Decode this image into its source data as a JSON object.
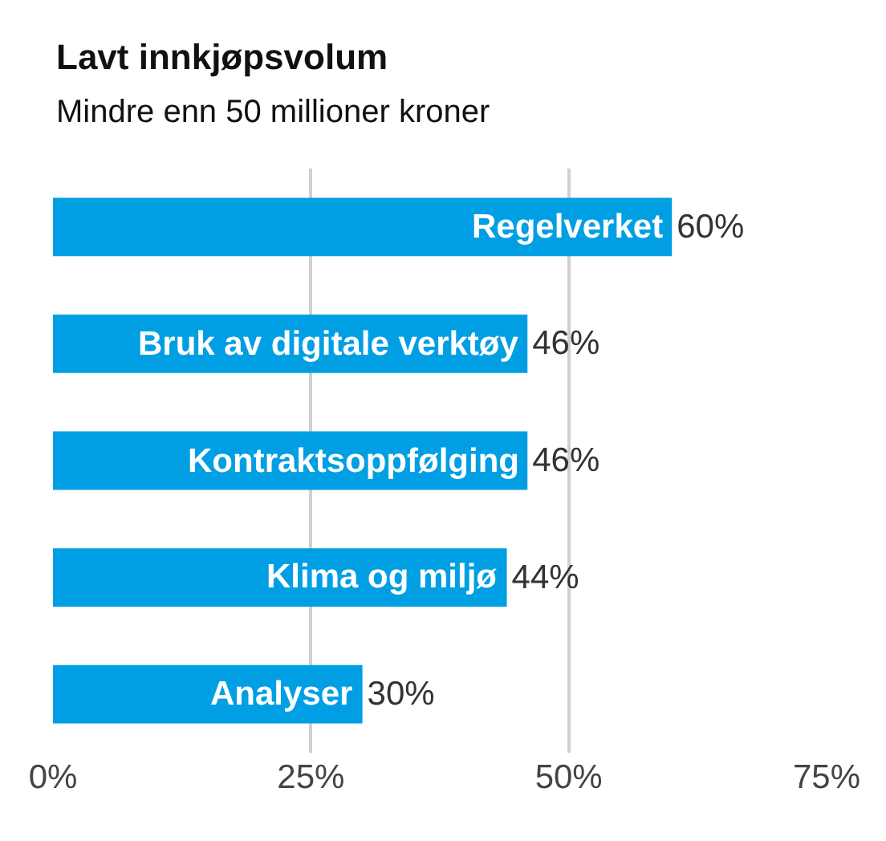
{
  "chart_data": {
    "type": "bar",
    "orientation": "horizontal",
    "title": "Lavt innkjøpsvolum",
    "subtitle": "Mindre enn 50 millioner kroner",
    "categories": [
      "Regelverket",
      "Bruk av digitale verktøy",
      "Kontraktsoppfølging",
      "Klima og miljø",
      "Analyser"
    ],
    "values": [
      60,
      46,
      46,
      44,
      30
    ],
    "value_labels": [
      "60%",
      "46%",
      "46%",
      "44%",
      "30%"
    ],
    "color": "#009fe3",
    "xlim": [
      0,
      75
    ],
    "xticks": [
      {
        "value": 0,
        "label": "0%"
      },
      {
        "value": 25,
        "label": "25%"
      },
      {
        "value": 50,
        "label": "50%"
      },
      {
        "value": 75,
        "label": "75%"
      }
    ],
    "grid": "x",
    "tick_labels": "x"
  }
}
